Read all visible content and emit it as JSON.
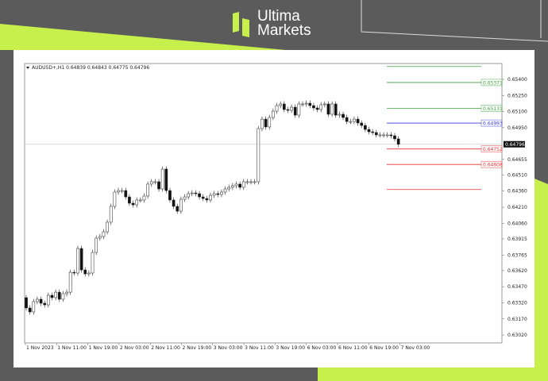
{
  "brand": {
    "name_line1": "Ultima",
    "name_line2": "Markets",
    "accent": "#c8f04c",
    "background": "#5b5b5b"
  },
  "chart_data": {
    "type": "candlestick",
    "header": {
      "symbol": "AUDUSD+,H1",
      "open": "0.64839",
      "high": "0.64843",
      "low": "0.64775",
      "close": "0.64796"
    },
    "ylim": [
      0.6295,
      0.6553
    ],
    "y_ticks": [
      "0.65400",
      "0.65250",
      "0.65100",
      "0.64950",
      "0.64655",
      "0.64510",
      "0.64360",
      "0.64210",
      "0.64060",
      "0.63915",
      "0.63765",
      "0.63620",
      "0.63470",
      "0.63320",
      "0.63170",
      "0.63020"
    ],
    "x_ticks": [
      "1 Nov 2023",
      "1 Nov 11:00",
      "1 Nov 19:00",
      "2 Nov 03:00",
      "2 Nov 11:00",
      "2 Nov 19:00",
      "3 Nov 03:00",
      "3 Nov 11:00",
      "3 Nov 19:00",
      "6 Nov 03:00",
      "6 Nov 11:00",
      "6 Nov 19:00",
      "7 Nov 03:00"
    ],
    "current_price": {
      "value": 0.64796,
      "label": "0.64796"
    },
    "first_open": 0.63368,
    "closes": [
      0.63272,
      0.63235,
      0.63331,
      0.63353,
      0.63316,
      0.63301,
      0.6339,
      0.63368,
      0.63419,
      0.63353,
      0.63405,
      0.63419,
      0.63604,
      0.63597,
      0.63826,
      0.63626,
      0.63589,
      0.63597,
      0.63789,
      0.63922,
      0.63937,
      0.63981,
      0.6407,
      0.64218,
      0.64351,
      0.64365,
      0.64365,
      0.64306,
      0.64247,
      0.64232,
      0.64277,
      0.64277,
      0.64314,
      0.64425,
      0.64447,
      0.64447,
      0.6438,
      0.64565,
      0.64365,
      0.64277,
      0.64218,
      0.64173,
      0.64284,
      0.64306,
      0.64336,
      0.64343,
      0.64336,
      0.64306,
      0.64291,
      0.64277,
      0.64321,
      0.64336,
      0.64328,
      0.64351,
      0.6438,
      0.64395,
      0.6441,
      0.64425,
      0.64395,
      0.64447,
      0.64447,
      0.64447,
      0.64447,
      0.64942,
      0.6503,
      0.64957,
      0.65045,
      0.65104,
      0.65156,
      0.65171,
      0.65119,
      0.65112,
      0.65141,
      0.65067,
      0.65171,
      0.65171,
      0.65178,
      0.65156,
      0.65134,
      0.65119,
      0.65164,
      0.65171,
      0.65075,
      0.65171,
      0.65067,
      0.65075,
      0.65045,
      0.65008,
      0.65008,
      0.6503,
      0.64994,
      0.64971,
      0.64934,
      0.64912,
      0.64905,
      0.64883,
      0.64883,
      0.64883,
      0.64883,
      0.64875,
      0.64846,
      0.64796
    ],
    "levels": [
      {
        "value": 0.6552,
        "label": "",
        "color": "#3aa23a"
      },
      {
        "value": 0.65371,
        "label": "0.65371",
        "color": "#3aa23a"
      },
      {
        "value": 0.65131,
        "label": "0.65131",
        "color": "#3aa23a"
      },
      {
        "value": 0.64993,
        "label": "0.64993",
        "color": "#3a3ad8"
      },
      {
        "value": 0.64752,
        "label": "0.64752",
        "color": "#e83030"
      },
      {
        "value": 0.64608,
        "label": "0.64608",
        "color": "#e83030"
      },
      {
        "value": 0.64375,
        "label": "",
        "color": "#e83030"
      }
    ]
  }
}
